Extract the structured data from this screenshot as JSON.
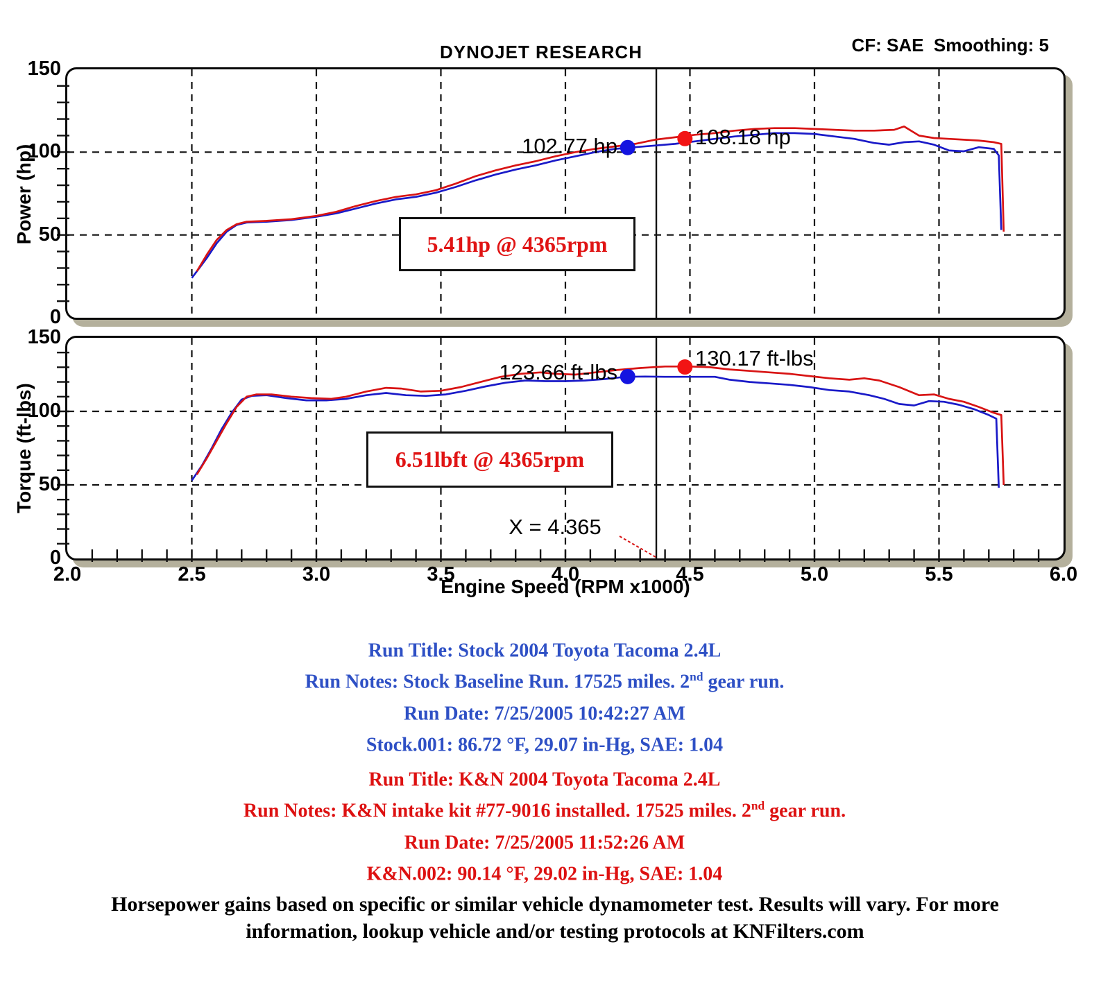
{
  "header": {
    "brand": "DYNOJET RESEARCH",
    "correction": "CF: SAE  Smoothing: 5"
  },
  "axes": {
    "x_label": "Engine Speed (RPM x1000)",
    "x_ticks": [
      "2.0",
      "2.5",
      "3.0",
      "3.5",
      "4.0",
      "4.5",
      "5.0",
      "5.5",
      "6.0"
    ],
    "y_ticks": [
      "0",
      "50",
      "100",
      "150"
    ],
    "power_label": "Power (hp)",
    "torque_label": "Torque (ft-lbs)"
  },
  "chart_data": [
    {
      "type": "line",
      "title": "Power vs Engine Speed",
      "ylabel": "Power (hp)",
      "xlabel": "Engine Speed (RPM x1000)",
      "xlim": [
        2.0,
        6.0
      ],
      "ylim": [
        0,
        150
      ],
      "grid_x": [
        2.5,
        3.0,
        3.5,
        4.0,
        4.5,
        5.0,
        5.5
      ],
      "grid_y": [
        50,
        100
      ],
      "cursor_x": 4.365,
      "gain_label": "5.41hp @ 4365rpm",
      "legend_position": "none",
      "series": [
        {
          "name": "stock-power",
          "color": "#1a1ac8",
          "points": [
            [
              2.5,
              24
            ],
            [
              2.53,
              30
            ],
            [
              2.56,
              36
            ],
            [
              2.6,
              45
            ],
            [
              2.64,
              52
            ],
            [
              2.68,
              56
            ],
            [
              2.72,
              57.5
            ],
            [
              2.8,
              58
            ],
            [
              2.9,
              59
            ],
            [
              3.0,
              61
            ],
            [
              3.08,
              63
            ],
            [
              3.16,
              66
            ],
            [
              3.24,
              69
            ],
            [
              3.32,
              71.5
            ],
            [
              3.4,
              73
            ],
            [
              3.48,
              75.5
            ],
            [
              3.56,
              79
            ],
            [
              3.64,
              83
            ],
            [
              3.72,
              86.5
            ],
            [
              3.8,
              89.5
            ],
            [
              3.88,
              92
            ],
            [
              3.96,
              95
            ],
            [
              4.04,
              97.5
            ],
            [
              4.12,
              100
            ],
            [
              4.2,
              102
            ],
            [
              4.28,
              103
            ],
            [
              4.36,
              104
            ],
            [
              4.44,
              105
            ],
            [
              4.52,
              106.5
            ],
            [
              4.6,
              108
            ],
            [
              4.68,
              109.5
            ],
            [
              4.76,
              110.5
            ],
            [
              4.84,
              111.5
            ],
            [
              4.92,
              111.5
            ],
            [
              5.0,
              111
            ],
            [
              5.08,
              109.5
            ],
            [
              5.16,
              108
            ],
            [
              5.24,
              105.5
            ],
            [
              5.3,
              104.5
            ],
            [
              5.36,
              106
            ],
            [
              5.42,
              106.5
            ],
            [
              5.48,
              104.5
            ],
            [
              5.54,
              101
            ],
            [
              5.6,
              100.5
            ],
            [
              5.66,
              103
            ],
            [
              5.72,
              102
            ],
            [
              5.74,
              98
            ],
            [
              5.75,
              53
            ]
          ]
        },
        {
          "name": "kn-power",
          "color": "#d81414",
          "points": [
            [
              2.52,
              28
            ],
            [
              2.56,
              38
            ],
            [
              2.6,
              47
            ],
            [
              2.64,
              53
            ],
            [
              2.68,
              56.5
            ],
            [
              2.72,
              58
            ],
            [
              2.8,
              58.5
            ],
            [
              2.9,
              59.5
            ],
            [
              3.0,
              61.5
            ],
            [
              3.08,
              64
            ],
            [
              3.16,
              67.5
            ],
            [
              3.24,
              70.5
            ],
            [
              3.32,
              73
            ],
            [
              3.4,
              74.5
            ],
            [
              3.48,
              77
            ],
            [
              3.56,
              81
            ],
            [
              3.64,
              85.5
            ],
            [
              3.72,
              89
            ],
            [
              3.8,
              92
            ],
            [
              3.88,
              94.5
            ],
            [
              3.96,
              97.5
            ],
            [
              4.04,
              100
            ],
            [
              4.12,
              102
            ],
            [
              4.2,
              103.5
            ],
            [
              4.28,
              105
            ],
            [
              4.36,
              107.5
            ],
            [
              4.44,
              109
            ],
            [
              4.52,
              110.5
            ],
            [
              4.6,
              111.5
            ],
            [
              4.68,
              113
            ],
            [
              4.76,
              114
            ],
            [
              4.84,
              114.5
            ],
            [
              4.92,
              114.5
            ],
            [
              5.0,
              114
            ],
            [
              5.08,
              113.5
            ],
            [
              5.16,
              113
            ],
            [
              5.24,
              113
            ],
            [
              5.32,
              113.5
            ],
            [
              5.36,
              115.5
            ],
            [
              5.42,
              110
            ],
            [
              5.48,
              108.5
            ],
            [
              5.54,
              108
            ],
            [
              5.6,
              107.5
            ],
            [
              5.66,
              107
            ],
            [
              5.72,
              106
            ],
            [
              5.75,
              105
            ],
            [
              5.76,
              52
            ]
          ]
        }
      ],
      "markers": [
        {
          "x": 4.25,
          "y": 102.77,
          "color": "#1414e0",
          "label": "102.77 hp",
          "side": "left"
        },
        {
          "x": 4.48,
          "y": 108.18,
          "color": "#f21414",
          "label": "108.18 hp",
          "side": "right"
        }
      ]
    },
    {
      "type": "line",
      "title": "Torque vs Engine Speed",
      "ylabel": "Torque (ft-lbs)",
      "xlabel": "Engine Speed (RPM x1000)",
      "xlim": [
        2.0,
        6.0
      ],
      "ylim": [
        0,
        150
      ],
      "grid_x": [
        2.5,
        3.0,
        3.5,
        4.0,
        4.5,
        5.0,
        5.5
      ],
      "grid_y": [
        50,
        100
      ],
      "cursor_x": 4.365,
      "cursor_label": "X = 4.365",
      "gain_label": "6.51lbft @ 4365rpm",
      "legend_position": "none",
      "series": [
        {
          "name": "stock-torque",
          "color": "#1a1ac8",
          "points": [
            [
              2.5,
              53
            ],
            [
              2.54,
              63
            ],
            [
              2.58,
              75
            ],
            [
              2.62,
              88
            ],
            [
              2.66,
              99
            ],
            [
              2.7,
              108
            ],
            [
              2.74,
              110.5
            ],
            [
              2.8,
              111
            ],
            [
              2.88,
              109
            ],
            [
              2.96,
              107.5
            ],
            [
              3.04,
              107.5
            ],
            [
              3.12,
              108.5
            ],
            [
              3.2,
              111
            ],
            [
              3.28,
              112.5
            ],
            [
              3.36,
              111
            ],
            [
              3.44,
              110.5
            ],
            [
              3.52,
              111.5
            ],
            [
              3.6,
              114
            ],
            [
              3.68,
              117
            ],
            [
              3.76,
              119.5
            ],
            [
              3.84,
              121
            ],
            [
              3.92,
              120.5
            ],
            [
              4.0,
              120.5
            ],
            [
              4.08,
              121
            ],
            [
              4.16,
              122
            ],
            [
              4.24,
              123.5
            ],
            [
              4.32,
              123.7
            ],
            [
              4.4,
              123.5
            ],
            [
              4.5,
              123.5
            ],
            [
              4.6,
              123.5
            ],
            [
              4.66,
              121.5
            ],
            [
              4.74,
              120
            ],
            [
              4.82,
              119
            ],
            [
              4.9,
              118
            ],
            [
              4.98,
              116.5
            ],
            [
              5.06,
              114.5
            ],
            [
              5.14,
              113.5
            ],
            [
              5.22,
              111
            ],
            [
              5.28,
              108.5
            ],
            [
              5.34,
              105
            ],
            [
              5.4,
              104
            ],
            [
              5.46,
              107
            ],
            [
              5.52,
              106.5
            ],
            [
              5.58,
              104.5
            ],
            [
              5.64,
              101.5
            ],
            [
              5.7,
              97.5
            ],
            [
              5.73,
              95
            ],
            [
              5.74,
              48
            ]
          ]
        },
        {
          "name": "kn-torque",
          "color": "#d81414",
          "points": [
            [
              2.52,
              57
            ],
            [
              2.56,
              68
            ],
            [
              2.6,
              80
            ],
            [
              2.64,
              92
            ],
            [
              2.68,
              103
            ],
            [
              2.72,
              110
            ],
            [
              2.76,
              111.5
            ],
            [
              2.82,
              111.5
            ],
            [
              2.9,
              110
            ],
            [
              2.98,
              109
            ],
            [
              3.06,
              108.5
            ],
            [
              3.12,
              110
            ],
            [
              3.2,
              113.5
            ],
            [
              3.28,
              116
            ],
            [
              3.34,
              115.5
            ],
            [
              3.42,
              113.5
            ],
            [
              3.5,
              114
            ],
            [
              3.58,
              116.5
            ],
            [
              3.66,
              120
            ],
            [
              3.74,
              123.5
            ],
            [
              3.82,
              125.5
            ],
            [
              3.9,
              126.5
            ],
            [
              3.96,
              125.5
            ],
            [
              4.04,
              125
            ],
            [
              4.12,
              126.5
            ],
            [
              4.2,
              128
            ],
            [
              4.3,
              129.5
            ],
            [
              4.4,
              130.5
            ],
            [
              4.5,
              130.5
            ],
            [
              4.58,
              130
            ],
            [
              4.66,
              128.5
            ],
            [
              4.74,
              127.5
            ],
            [
              4.82,
              126.5
            ],
            [
              4.9,
              125.5
            ],
            [
              4.98,
              124
            ],
            [
              5.06,
              122.5
            ],
            [
              5.14,
              121.5
            ],
            [
              5.2,
              122.5
            ],
            [
              5.26,
              121
            ],
            [
              5.34,
              116.5
            ],
            [
              5.42,
              111
            ],
            [
              5.48,
              111.5
            ],
            [
              5.54,
              108.5
            ],
            [
              5.6,
              106.5
            ],
            [
              5.66,
              103
            ],
            [
              5.72,
              99
            ],
            [
              5.75,
              97.5
            ],
            [
              5.76,
              50
            ]
          ]
        }
      ],
      "markers": [
        {
          "x": 4.25,
          "y": 123.66,
          "color": "#1414e0",
          "label": "123.66 ft-lbs",
          "side": "left"
        },
        {
          "x": 4.48,
          "y": 130.17,
          "color": "#f21414",
          "label": "130.17 ft-lbs",
          "side": "right"
        }
      ]
    }
  ],
  "runs": [
    {
      "color": "#2e50c5",
      "lines": [
        {
          "pre": "Run Title: Stock 2004 Toyota Tacoma 2.4L",
          "sup": "",
          "post": ""
        },
        {
          "pre": "Run Notes: Stock Baseline Run. 17525 miles. 2",
          "sup": "nd",
          "post": " gear run."
        },
        {
          "pre": "Run Date: 7/25/2005 10:42:27 AM",
          "sup": "",
          "post": ""
        },
        {
          "pre": "Stock.001: 86.72 °F, 29.07 in-Hg, SAE: 1.04",
          "sup": "",
          "post": ""
        }
      ]
    },
    {
      "color": "#dd1111",
      "lines": [
        {
          "pre": "Run Title: K&N 2004 Toyota Tacoma 2.4L",
          "sup": "",
          "post": ""
        },
        {
          "pre": "Run Notes: K&N intake kit #77-9016 installed. 17525 miles. 2",
          "sup": "nd",
          "post": " gear run."
        },
        {
          "pre": "Run Date: 7/25/2005 11:52:26 AM",
          "sup": "",
          "post": ""
        },
        {
          "pre": "K&N.002: 90.14 °F, 29.02 in-Hg, SAE: 1.04",
          "sup": "",
          "post": ""
        }
      ]
    }
  ],
  "disclaimer": {
    "line1": "Horsepower gains based on specific or similar vehicle dynamometer test. Results will vary. For more",
    "line2": "information, lookup vehicle and/or testing protocols at KNFilters.com"
  },
  "colors": {
    "stock_curve": "#1a1ac8",
    "kn_curve": "#d81414",
    "panel_shadow": "#b4b09c",
    "gain_text": "#e01414"
  }
}
